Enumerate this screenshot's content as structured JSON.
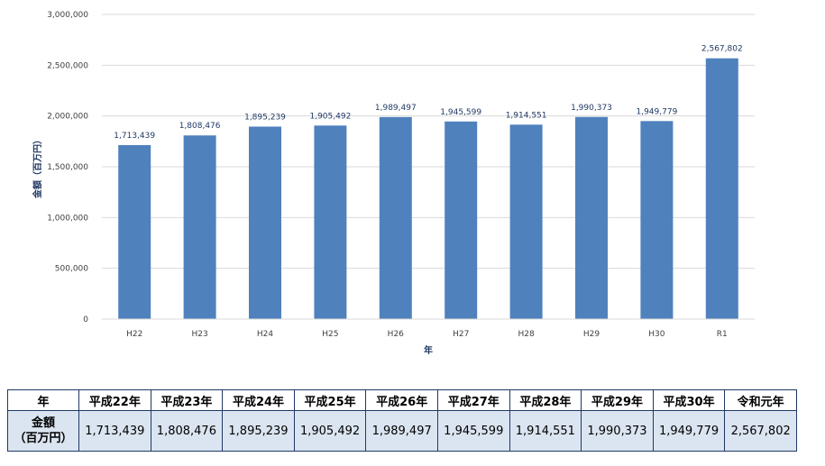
{
  "chart_data": {
    "type": "bar",
    "categories": [
      "H22",
      "H23",
      "H24",
      "H25",
      "H26",
      "H27",
      "H28",
      "H29",
      "H30",
      "R1"
    ],
    "series": [
      {
        "values": [
          1713439,
          1808476,
          1895239,
          1905492,
          1989497,
          1945599,
          1914551,
          1990373,
          1949779,
          2567802
        ]
      }
    ],
    "data_labels": [
      "1,713,439",
      "1,808,476",
      "1,895,239",
      "1,905,492",
      "1,989,497",
      "1,945,599",
      "1,914,551",
      "1,990,373",
      "1,949,779",
      "2,567,802"
    ],
    "xlabel": "年",
    "ylabel": "金額（百万円）",
    "ylim": [
      0,
      3000000
    ],
    "y_ticks": [
      0,
      500000,
      1000000,
      1500000,
      2000000,
      2500000,
      3000000
    ],
    "y_tick_labels": [
      "0",
      "500,000",
      "1,000,000",
      "1,500,000",
      "2,000,000",
      "2,500,000",
      "3,000,000"
    ],
    "grid": true,
    "bar_color": "#4f81bd"
  },
  "table": {
    "header_label": "年",
    "row_label_line1": "金額",
    "row_label_line2": "（百万円）",
    "columns": [
      "平成22年",
      "平成23年",
      "平成24年",
      "平成25年",
      "平成26年",
      "平成27年",
      "平成28年",
      "平成29年",
      "平成30年",
      "令和元年"
    ],
    "values": [
      "1,713,439",
      "1,808,476",
      "1,895,239",
      "1,905,492",
      "1,989,497",
      "1,945,599",
      "1,914,551",
      "1,990,373",
      "1,949,779",
      "2,567,802"
    ]
  }
}
